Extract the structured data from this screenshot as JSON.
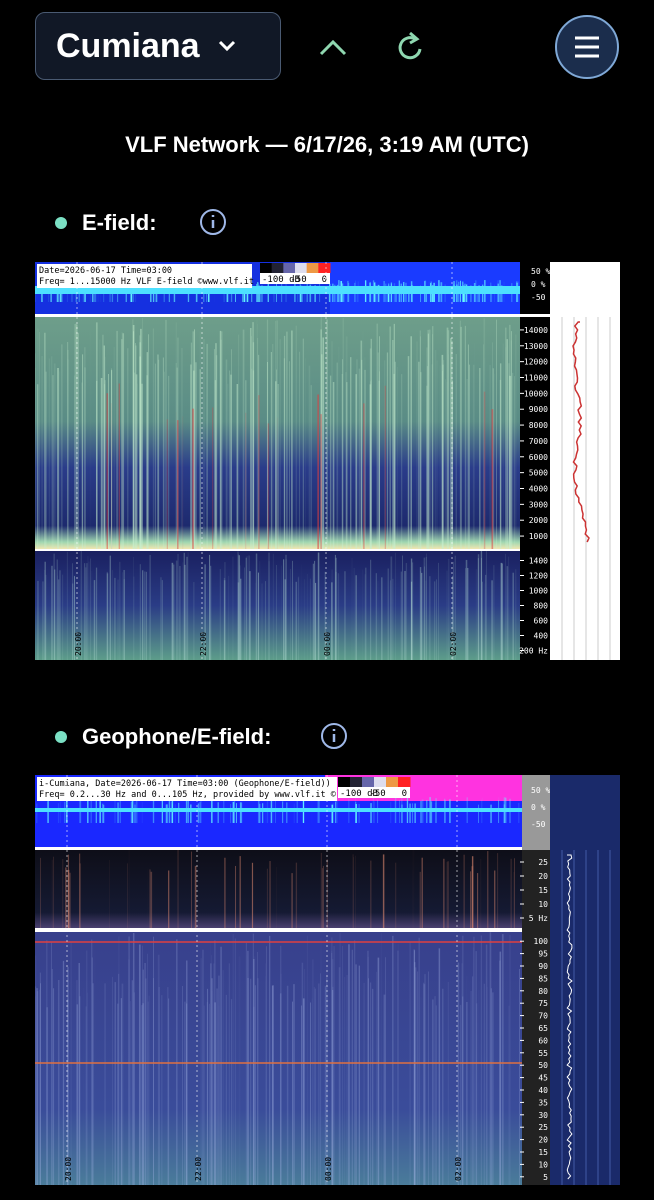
{
  "header": {
    "location": "Cumiana"
  },
  "title": "VLF Network — 6/17/26, 3:19 AM (UTC)",
  "sections": [
    {
      "label": "E-field:",
      "spectrogram": {
        "caption_lines": [
          "Date=2026-06-17 Time=03:00",
          "Freq= 1...15000 Hz   VLF E-field ©www.vlf.it"
        ],
        "db_scale": [
          "-100 dB",
          "-50",
          "0"
        ],
        "percent_ticks": [
          "50 %",
          "0 %",
          "-50 %"
        ],
        "freq_ticks_high": [
          "14000",
          "13000",
          "12000",
          "11000",
          "10000",
          "9000",
          "8000",
          "7000",
          "6000",
          "5000",
          "4000",
          "3000",
          "2000",
          "1000"
        ],
        "freq_ticks_low": [
          "1400",
          "1200",
          "1000",
          "800",
          "600",
          "400",
          "200 Hz"
        ],
        "time_ticks": [
          "20:00",
          "22:00",
          "00:00",
          "02:00"
        ]
      }
    },
    {
      "label": "Geophone/E-field:",
      "spectrogram": {
        "caption_lines": [
          "i-Cumiana, Date=2026-06-17 Time=03:00 (Geophone/E-field))",
          "Freq= 0.2...30 Hz and 0...105 Hz, provided by www.vlf.it ©"
        ],
        "db_scale": [
          "-100 dB",
          "-50",
          "0"
        ],
        "percent_ticks": [
          "50 %",
          "0 %",
          "-50 %"
        ],
        "freq_ticks_high": [
          "25",
          "20",
          "15",
          "10",
          "5 Hz"
        ],
        "freq_ticks_low": [
          "100",
          "95",
          "90",
          "85",
          "80",
          "75",
          "70",
          "65",
          "60",
          "55",
          "50",
          "45",
          "40",
          "35",
          "30",
          "25",
          "20",
          "15",
          "10",
          "5"
        ],
        "time_ticks": [
          "20:00",
          "22:00",
          "00:00",
          "02:00"
        ]
      }
    }
  ]
}
